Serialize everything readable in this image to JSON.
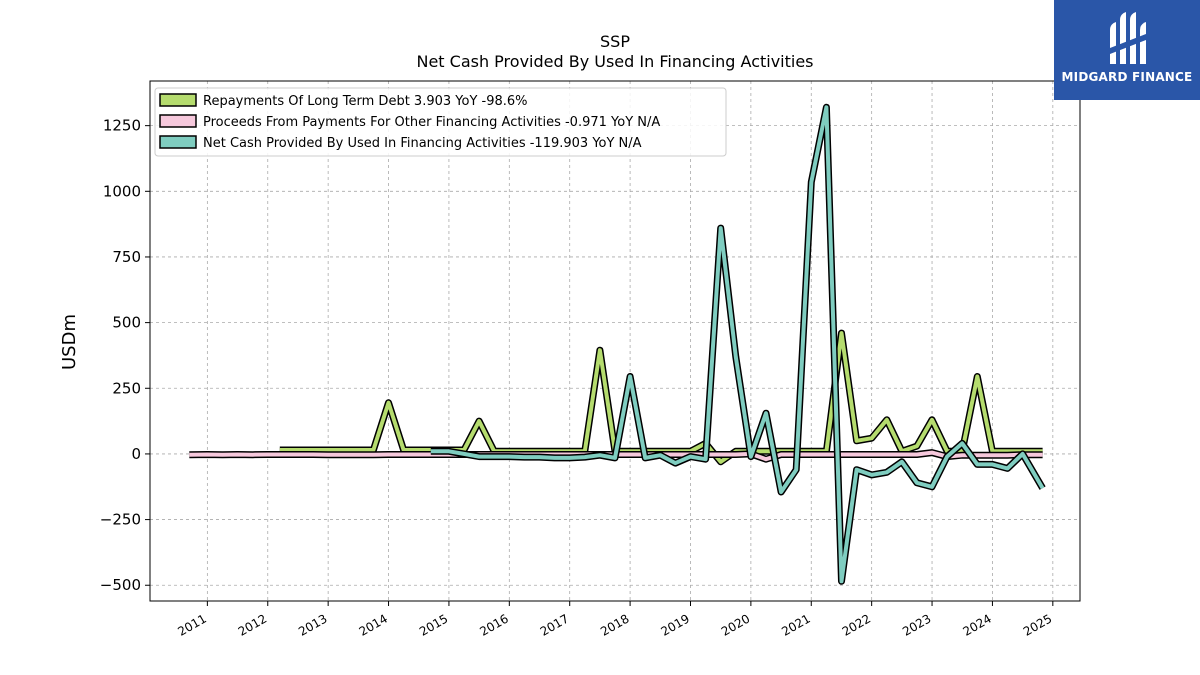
{
  "brand": {
    "name": "MIDGARD FINANCE",
    "bg_color": "#2a56a8"
  },
  "chart_data": {
    "type": "line",
    "title": "SSP",
    "subtitle": "Net Cash Provided By Used In Financing Activities",
    "ylabel": "USDm",
    "xlabel": "",
    "ylim": [
      -560,
      1420
    ],
    "xlim": [
      2010.05,
      2025.45
    ],
    "yticks": [
      -500,
      -250,
      0,
      250,
      500,
      750,
      1000,
      1250
    ],
    "ytick_labels": [
      "−500",
      "−250",
      "0",
      "250",
      "500",
      "750",
      "1000",
      "1250"
    ],
    "xticks": [
      2011,
      2012,
      2013,
      2014,
      2015,
      2016,
      2017,
      2018,
      2019,
      2020,
      2021,
      2022,
      2023,
      2024,
      2025
    ],
    "xtick_labels": [
      "2011",
      "2012",
      "2013",
      "2014",
      "2015",
      "2016",
      "2017",
      "2018",
      "2019",
      "2020",
      "2021",
      "2022",
      "2023",
      "2024",
      "2025"
    ],
    "grid": true,
    "legend_position": "top-left",
    "series": [
      {
        "name": "Repayments Of Long Term Debt",
        "legend": "Repayments Of Long Term Debt  3.903 YoY -98.6%",
        "color": "#b5dc6e",
        "points": [
          [
            2012.2,
            15
          ],
          [
            2012.5,
            15
          ],
          [
            2012.75,
            15
          ],
          [
            2013.0,
            15
          ],
          [
            2013.25,
            15
          ],
          [
            2013.5,
            15
          ],
          [
            2013.75,
            15
          ],
          [
            2014.0,
            195
          ],
          [
            2014.25,
            15
          ],
          [
            2014.5,
            15
          ],
          [
            2014.75,
            15
          ],
          [
            2015.0,
            15
          ],
          [
            2015.25,
            15
          ],
          [
            2015.5,
            125
          ],
          [
            2015.75,
            10
          ],
          [
            2016.0,
            10
          ],
          [
            2016.25,
            10
          ],
          [
            2016.5,
            10
          ],
          [
            2016.75,
            10
          ],
          [
            2017.0,
            10
          ],
          [
            2017.25,
            10
          ],
          [
            2017.5,
            395
          ],
          [
            2017.75,
            10
          ],
          [
            2018.0,
            10
          ],
          [
            2018.25,
            10
          ],
          [
            2018.5,
            10
          ],
          [
            2018.75,
            10
          ],
          [
            2019.0,
            10
          ],
          [
            2019.25,
            40
          ],
          [
            2019.5,
            -30
          ],
          [
            2019.75,
            10
          ],
          [
            2020.0,
            10
          ],
          [
            2020.25,
            10
          ],
          [
            2020.5,
            10
          ],
          [
            2020.75,
            10
          ],
          [
            2021.0,
            10
          ],
          [
            2021.25,
            10
          ],
          [
            2021.5,
            460
          ],
          [
            2021.75,
            50
          ],
          [
            2022.0,
            60
          ],
          [
            2022.25,
            130
          ],
          [
            2022.5,
            10
          ],
          [
            2022.75,
            30
          ],
          [
            2023.0,
            130
          ],
          [
            2023.25,
            10
          ],
          [
            2023.5,
            10
          ],
          [
            2023.75,
            295
          ],
          [
            2024.0,
            10
          ],
          [
            2024.25,
            10
          ],
          [
            2024.5,
            10
          ],
          [
            2024.83,
            10
          ]
        ]
      },
      {
        "name": "Proceeds From Payments For Other Financing Activities",
        "legend": "Proceeds From Payments For Other Financing Activities  -0.971 YoY N/A",
        "color": "#f6c8dc",
        "points": [
          [
            2010.7,
            -3
          ],
          [
            2011.0,
            -2
          ],
          [
            2011.25,
            -3
          ],
          [
            2011.5,
            -2
          ],
          [
            2011.75,
            -3
          ],
          [
            2012.0,
            -2
          ],
          [
            2012.25,
            -2
          ],
          [
            2012.5,
            -2
          ],
          [
            2012.75,
            -2
          ],
          [
            2013.0,
            -3
          ],
          [
            2013.25,
            -3
          ],
          [
            2013.5,
            -3
          ],
          [
            2013.75,
            -3
          ],
          [
            2014.0,
            -2
          ],
          [
            2014.25,
            -2
          ],
          [
            2014.5,
            -2
          ],
          [
            2014.75,
            -2
          ],
          [
            2015.0,
            -2
          ],
          [
            2015.25,
            -2
          ],
          [
            2015.5,
            -2
          ],
          [
            2015.75,
            -2
          ],
          [
            2016.0,
            -2
          ],
          [
            2016.25,
            -2
          ],
          [
            2016.5,
            -2
          ],
          [
            2016.75,
            -2
          ],
          [
            2017.0,
            -2
          ],
          [
            2017.25,
            -2
          ],
          [
            2017.5,
            -2
          ],
          [
            2017.75,
            -2
          ],
          [
            2018.0,
            -2
          ],
          [
            2018.25,
            -2
          ],
          [
            2018.5,
            -2
          ],
          [
            2018.75,
            -2
          ],
          [
            2019.0,
            -2
          ],
          [
            2019.25,
            -2
          ],
          [
            2019.5,
            -2
          ],
          [
            2019.75,
            -2
          ],
          [
            2020.0,
            0
          ],
          [
            2020.25,
            -20
          ],
          [
            2020.5,
            -2
          ],
          [
            2020.75,
            -2
          ],
          [
            2021.0,
            -2
          ],
          [
            2021.25,
            -2
          ],
          [
            2021.5,
            -2
          ],
          [
            2021.75,
            -2
          ],
          [
            2022.0,
            -2
          ],
          [
            2022.25,
            -2
          ],
          [
            2022.5,
            -2
          ],
          [
            2022.75,
            -2
          ],
          [
            2023.0,
            5
          ],
          [
            2023.25,
            -10
          ],
          [
            2023.5,
            -5
          ],
          [
            2023.75,
            -5
          ],
          [
            2024.0,
            -5
          ],
          [
            2024.25,
            -5
          ],
          [
            2024.5,
            -3
          ],
          [
            2024.83,
            -3
          ]
        ]
      },
      {
        "name": "Net Cash Provided By Used In Financing Activities",
        "legend": "Net Cash Provided By Used In Financing Activities  -119.903 YoY N/A",
        "color": "#7fcdc0",
        "points": [
          [
            2014.7,
            10
          ],
          [
            2015.0,
            10
          ],
          [
            2015.25,
            0
          ],
          [
            2015.5,
            -10
          ],
          [
            2015.75,
            -10
          ],
          [
            2016.0,
            -10
          ],
          [
            2016.25,
            -12
          ],
          [
            2016.5,
            -12
          ],
          [
            2016.75,
            -15
          ],
          [
            2017.0,
            -15
          ],
          [
            2017.25,
            -12
          ],
          [
            2017.5,
            -5
          ],
          [
            2017.75,
            -15
          ],
          [
            2018.0,
            295
          ],
          [
            2018.25,
            -15
          ],
          [
            2018.5,
            -5
          ],
          [
            2018.75,
            -35
          ],
          [
            2019.0,
            -10
          ],
          [
            2019.25,
            -20
          ],
          [
            2019.5,
            860
          ],
          [
            2019.75,
            370
          ],
          [
            2020.0,
            -10
          ],
          [
            2020.25,
            155
          ],
          [
            2020.5,
            -145
          ],
          [
            2020.75,
            -60
          ],
          [
            2021.0,
            1035
          ],
          [
            2021.25,
            1320
          ],
          [
            2021.5,
            -485
          ],
          [
            2021.75,
            -60
          ],
          [
            2022.0,
            -80
          ],
          [
            2022.25,
            -70
          ],
          [
            2022.5,
            -30
          ],
          [
            2022.75,
            -110
          ],
          [
            2023.0,
            -125
          ],
          [
            2023.25,
            -10
          ],
          [
            2023.5,
            40
          ],
          [
            2023.75,
            -40
          ],
          [
            2024.0,
            -40
          ],
          [
            2024.25,
            -55
          ],
          [
            2024.5,
            0
          ],
          [
            2024.83,
            -130
          ]
        ]
      }
    ]
  }
}
